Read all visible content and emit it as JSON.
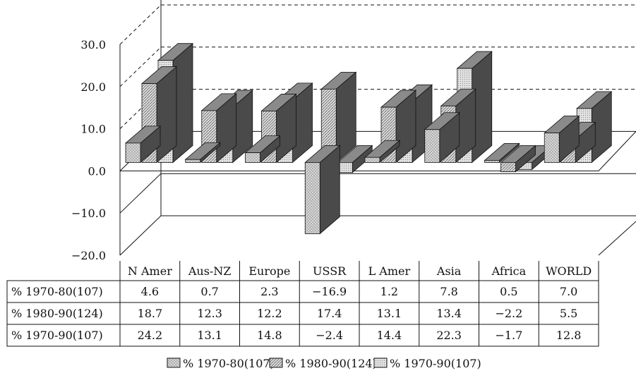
{
  "chart_data": {
    "type": "bar",
    "categories": [
      "N Amer",
      "Aus-NZ",
      "Europe",
      "USSR",
      "L Amer",
      "Asia",
      "Africa",
      "WORLD"
    ],
    "series": [
      {
        "name": "% 1970-80(107)",
        "values": [
          4.6,
          0.7,
          2.3,
          -16.9,
          1.2,
          7.8,
          0.5,
          7.0
        ],
        "display": [
          "4.6",
          "0.7",
          "2.3",
          "−16.9",
          "1.2",
          "7.8",
          "0.5",
          "7.0"
        ]
      },
      {
        "name": "% 1980-90(124)",
        "values": [
          18.7,
          12.3,
          12.2,
          17.4,
          13.1,
          13.4,
          -2.2,
          5.5
        ],
        "display": [
          "18.7",
          "12.3",
          "12.2",
          "17.4",
          "13.1",
          "13.4",
          "−2.2",
          "5.5"
        ]
      },
      {
        "name": "% 1970-90(107)",
        "values": [
          24.2,
          13.1,
          14.8,
          -2.4,
          14.4,
          22.3,
          -1.7,
          12.8
        ],
        "display": [
          "24.2",
          "13.1",
          "14.8",
          "−2.4",
          "14.4",
          "22.3",
          "−1.7",
          "12.8"
        ]
      }
    ],
    "ylim": [
      -20,
      30
    ],
    "yticks": [
      "30.0",
      "20.0",
      "10.0",
      "0.0",
      "−10.0",
      "−20.0"
    ],
    "legend": "bottom",
    "grid": true,
    "colors": {
      "front": "#d2d2d2",
      "side": "#4a4a4a",
      "top": "#8a8a8a",
      "edge": "#111111"
    }
  }
}
